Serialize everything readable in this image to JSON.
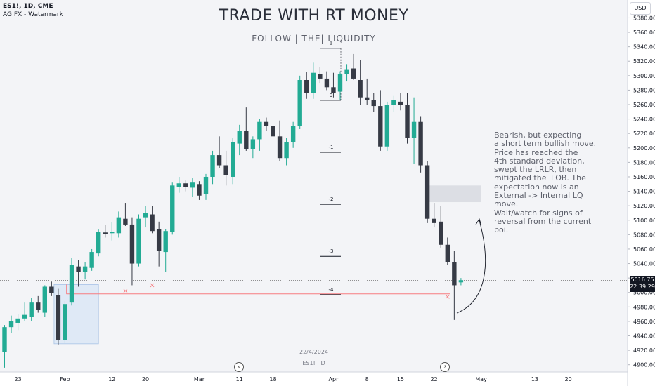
{
  "header": {
    "symbol_line": "ES1!, 1D, CME",
    "indicator_line": "AG FX - Watermark",
    "title": "TRADE WITH RT MONEY",
    "subtitle": "FOLLOW   |   THE|   LIQUIDITY"
  },
  "watermark": {
    "date": "22/4/2024",
    "symbol": "ES1! | D"
  },
  "note": {
    "text": "Bearish, but expecting\n a short term bullish move.\nPrice has reached the\n 4th standard deviation,\n swept the LRLR, then\n mitigated the +OB. The\nexpectation now is an\nExternal -> Internal LQ\nmove.\nWait/watch for signs of\nreversal from the current\npoi."
  },
  "price_axis": {
    "currency": "USD",
    "last_price": "5016.75",
    "countdown": "22:39:29",
    "labels": [
      "5380.00",
      "5360.00",
      "5340.00",
      "5320.00",
      "5300.00",
      "5280.00",
      "5260.00",
      "5240.00",
      "5220.00",
      "5200.00",
      "5180.00",
      "5160.00",
      "5140.00",
      "5120.00",
      "5100.00",
      "5080.00",
      "5060.00",
      "5040.00",
      "5020.00",
      "5000.00",
      "4980.00",
      "4960.00",
      "4940.00",
      "4920.00",
      "4900.00"
    ]
  },
  "time_axis": {
    "labels": [
      "23",
      "Feb",
      "12",
      "20",
      "Mar",
      "11",
      "18",
      "Apr",
      "8",
      "15",
      "22",
      "May",
      "13",
      "20"
    ]
  },
  "icons": {
    "left": "fast-forward-icon",
    "right": "lightning-icon"
  },
  "chart_data": {
    "type": "candlestick",
    "colors": {
      "up": "#22ab94",
      "down": "#363a45",
      "ob_zone": "#d6e4f5",
      "sweep_line": "#f77c80",
      "poi_zone": "#d1d4dc"
    },
    "ylim": [
      4890,
      5395
    ],
    "candles": [
      {
        "date": "2024-01-19",
        "o": 4918,
        "h": 4955,
        "l": 4896,
        "c": 4952
      },
      {
        "date": "2024-01-22",
        "o": 4952,
        "h": 4968,
        "l": 4944,
        "c": 4960
      },
      {
        "date": "2024-01-23",
        "o": 4958,
        "h": 4970,
        "l": 4948,
        "c": 4964
      },
      {
        "date": "2024-01-24",
        "o": 4964,
        "h": 4986,
        "l": 4960,
        "c": 4969
      },
      {
        "date": "2024-01-25",
        "o": 4966,
        "h": 4992,
        "l": 4960,
        "c": 4986
      },
      {
        "date": "2024-01-26",
        "o": 4986,
        "h": 4995,
        "l": 4972,
        "c": 4976
      },
      {
        "date": "2024-01-29",
        "o": 4972,
        "h": 5010,
        "l": 4966,
        "c": 5008
      },
      {
        "date": "2024-01-30",
        "o": 5008,
        "h": 5015,
        "l": 4995,
        "c": 4999
      },
      {
        "date": "2024-01-31",
        "o": 4996,
        "h": 5005,
        "l": 4928,
        "c": 4934
      },
      {
        "date": "2024-02-01",
        "o": 4934,
        "h": 4988,
        "l": 4930,
        "c": 4984
      },
      {
        "date": "2024-02-02",
        "o": 4986,
        "h": 5048,
        "l": 4982,
        "c": 5038
      },
      {
        "date": "2024-02-05",
        "o": 5036,
        "h": 5045,
        "l": 5008,
        "c": 5028
      },
      {
        "date": "2024-02-06",
        "o": 5028,
        "h": 5042,
        "l": 5018,
        "c": 5036
      },
      {
        "date": "2024-02-07",
        "o": 5034,
        "h": 5060,
        "l": 5030,
        "c": 5056
      },
      {
        "date": "2024-02-08",
        "o": 5054,
        "h": 5087,
        "l": 5050,
        "c": 5084
      },
      {
        "date": "2024-02-09",
        "o": 5083,
        "h": 5093,
        "l": 5076,
        "c": 5081
      },
      {
        "date": "2024-02-12",
        "o": 5082,
        "h": 5097,
        "l": 5072,
        "c": 5084
      },
      {
        "date": "2024-02-13",
        "o": 5082,
        "h": 5112,
        "l": 5076,
        "c": 5104
      },
      {
        "date": "2024-02-14",
        "o": 5102,
        "h": 5124,
        "l": 5092,
        "c": 5094
      },
      {
        "date": "2024-02-15",
        "o": 5094,
        "h": 5104,
        "l": 5010,
        "c": 5040
      },
      {
        "date": "2024-02-16",
        "o": 5040,
        "h": 5108,
        "l": 5036,
        "c": 5102
      },
      {
        "date": "2024-02-20",
        "o": 5104,
        "h": 5120,
        "l": 5090,
        "c": 5110
      },
      {
        "date": "2024-02-21",
        "o": 5108,
        "h": 5120,
        "l": 5082,
        "c": 5085
      },
      {
        "date": "2024-02-22",
        "o": 5088,
        "h": 5098,
        "l": 5036,
        "c": 5058
      },
      {
        "date": "2024-02-23",
        "o": 5056,
        "h": 5088,
        "l": 5028,
        "c": 5085
      },
      {
        "date": "2024-02-26",
        "o": 5084,
        "h": 5152,
        "l": 5080,
        "c": 5148
      },
      {
        "date": "2024-02-27",
        "o": 5146,
        "h": 5160,
        "l": 5138,
        "c": 5151
      },
      {
        "date": "2024-02-28",
        "o": 5151,
        "h": 5155,
        "l": 5140,
        "c": 5146
      },
      {
        "date": "2024-02-29",
        "o": 5145,
        "h": 5158,
        "l": 5132,
        "c": 5152
      },
      {
        "date": "2024-03-01",
        "o": 5150,
        "h": 5154,
        "l": 5128,
        "c": 5134
      },
      {
        "date": "2024-03-04",
        "o": 5136,
        "h": 5164,
        "l": 5128,
        "c": 5160
      },
      {
        "date": "2024-03-05",
        "o": 5160,
        "h": 5196,
        "l": 5150,
        "c": 5190
      },
      {
        "date": "2024-03-06",
        "o": 5190,
        "h": 5216,
        "l": 5172,
        "c": 5176
      },
      {
        "date": "2024-03-07",
        "o": 5176,
        "h": 5196,
        "l": 5148,
        "c": 5162
      },
      {
        "date": "2024-03-08",
        "o": 5160,
        "h": 5214,
        "l": 5150,
        "c": 5208
      },
      {
        "date": "2024-03-11",
        "o": 5206,
        "h": 5232,
        "l": 5190,
        "c": 5224
      },
      {
        "date": "2024-03-12",
        "o": 5224,
        "h": 5256,
        "l": 5196,
        "c": 5198
      },
      {
        "date": "2024-03-13",
        "o": 5198,
        "h": 5216,
        "l": 5186,
        "c": 5212
      },
      {
        "date": "2024-03-14",
        "o": 5212,
        "h": 5240,
        "l": 5196,
        "c": 5236
      },
      {
        "date": "2024-03-15",
        "o": 5236,
        "h": 5242,
        "l": 5224,
        "c": 5230
      },
      {
        "date": "2024-03-18",
        "o": 5230,
        "h": 5260,
        "l": 5210,
        "c": 5216
      },
      {
        "date": "2024-03-19",
        "o": 5216,
        "h": 5238,
        "l": 5182,
        "c": 5186
      },
      {
        "date": "2024-03-20",
        "o": 5186,
        "h": 5214,
        "l": 5176,
        "c": 5208
      },
      {
        "date": "2024-03-21",
        "o": 5208,
        "h": 5236,
        "l": 5200,
        "c": 5230
      },
      {
        "date": "2024-03-22",
        "o": 5230,
        "h": 5300,
        "l": 5226,
        "c": 5294
      },
      {
        "date": "2024-03-25",
        "o": 5294,
        "h": 5305,
        "l": 5268,
        "c": 5276
      },
      {
        "date": "2024-03-26",
        "o": 5276,
        "h": 5318,
        "l": 5268,
        "c": 5304
      },
      {
        "date": "2024-03-27",
        "o": 5302,
        "h": 5312,
        "l": 5290,
        "c": 5296
      },
      {
        "date": "2024-03-28",
        "o": 5296,
        "h": 5306,
        "l": 5280,
        "c": 5284
      },
      {
        "date": "2024-04-01",
        "o": 5284,
        "h": 5304,
        "l": 5270,
        "c": 5276
      },
      {
        "date": "2024-04-02",
        "o": 5278,
        "h": 5306,
        "l": 5266,
        "c": 5302
      },
      {
        "date": "2024-04-03",
        "o": 5302,
        "h": 5316,
        "l": 5292,
        "c": 5308
      },
      {
        "date": "2024-04-04",
        "o": 5310,
        "h": 5330,
        "l": 5294,
        "c": 5296
      },
      {
        "date": "2024-04-05",
        "o": 5294,
        "h": 5322,
        "l": 5260,
        "c": 5270
      },
      {
        "date": "2024-04-08",
        "o": 5270,
        "h": 5296,
        "l": 5260,
        "c": 5266
      },
      {
        "date": "2024-04-09",
        "o": 5266,
        "h": 5276,
        "l": 5250,
        "c": 5258
      },
      {
        "date": "2024-04-10",
        "o": 5258,
        "h": 5280,
        "l": 5196,
        "c": 5202
      },
      {
        "date": "2024-04-11",
        "o": 5202,
        "h": 5264,
        "l": 5196,
        "c": 5260
      },
      {
        "date": "2024-04-12",
        "o": 5260,
        "h": 5272,
        "l": 5250,
        "c": 5266
      },
      {
        "date": "2024-04-15",
        "o": 5264,
        "h": 5276,
        "l": 5252,
        "c": 5260
      },
      {
        "date": "2024-04-16",
        "o": 5260,
        "h": 5276,
        "l": 5206,
        "c": 5214
      },
      {
        "date": "2024-04-17",
        "o": 5214,
        "h": 5270,
        "l": 5178,
        "c": 5236
      },
      {
        "date": "2024-04-18",
        "o": 5236,
        "h": 5244,
        "l": 5166,
        "c": 5176
      },
      {
        "date": "2024-04-19",
        "o": 5176,
        "h": 5182,
        "l": 5096,
        "c": 5102
      },
      {
        "date": "2024-04-22",
        "o": 5102,
        "h": 5124,
        "l": 5090,
        "c": 5096
      },
      {
        "date": "2024-04-23",
        "o": 5098,
        "h": 5120,
        "l": 5062,
        "c": 5066
      },
      {
        "date": "2024-04-24",
        "o": 5066,
        "h": 5076,
        "l": 5038,
        "c": 5042
      },
      {
        "date": "2024-04-25",
        "o": 5042,
        "h": 5058,
        "l": 4962,
        "c": 5010
      },
      {
        "date": "2024-04-26",
        "o": 5014,
        "h": 5020,
        "l": 5010,
        "c": 5017
      }
    ],
    "fib_levels": [
      {
        "label": "1",
        "value": 5338
      },
      {
        "label": "0",
        "value": 5266
      },
      {
        "label": "-1",
        "value": 5194
      },
      {
        "label": "-2",
        "value": 5122
      },
      {
        "label": "-3",
        "value": 5050
      },
      {
        "label": "-4",
        "value": 4997
      }
    ],
    "annotations": {
      "ob_zone": {
        "from": "2024-01-31",
        "to": "2024-02-08",
        "y1": 4929,
        "y2": 5011
      },
      "poi_zone": {
        "from": "2024-04-19",
        "to": "2024-05-01",
        "y1": 5125,
        "y2": 5148
      },
      "sweep_line": {
        "from": "2024-02-01",
        "to": "2024-04-25",
        "value": 4998
      },
      "x_marks": [
        {
          "date": "2024-02-14",
          "value": 5003
        },
        {
          "date": "2024-02-21",
          "value": 5011
        },
        {
          "date": "2024-04-24",
          "value": 4995
        }
      ],
      "last_price_line": 5016.75
    }
  }
}
